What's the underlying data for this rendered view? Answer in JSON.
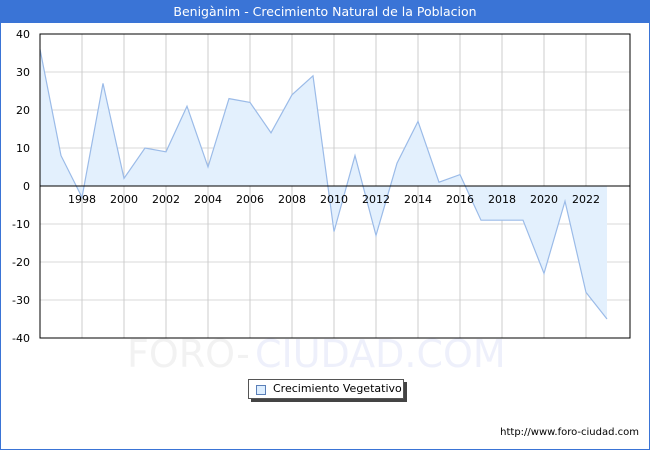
{
  "header": {
    "title": "Benigànim - Crecimiento Natural de la Poblacion"
  },
  "legend": {
    "label": "Crecimiento Vegetativo",
    "swatch_color": "#ddeeff"
  },
  "watermark": {
    "left": "FORO-",
    "right": "CIUDAD.COM"
  },
  "footer": {
    "url": "http://www.foro-ciudad.com"
  },
  "colors": {
    "title_bg": "#3a74d6",
    "line": "#9bbbe8",
    "fill": "#e3f0fd",
    "grid": "#d9d9d9"
  },
  "chart_data": {
    "type": "area",
    "title": "Benigànim - Crecimiento Natural de la Poblacion",
    "xlabel": "",
    "ylabel": "",
    "ylim": [
      -40,
      40
    ],
    "yticks": [
      40,
      30,
      20,
      10,
      0,
      -10,
      -20,
      -30,
      -40
    ],
    "xtick_labels": [
      "1998",
      "2000",
      "2002",
      "2004",
      "2006",
      "2008",
      "2010",
      "2012",
      "2014",
      "2016",
      "2018",
      "2020",
      "2022"
    ],
    "grid": true,
    "legend_position": "bottom",
    "x": [
      1996,
      1997,
      1998,
      1999,
      2000,
      2001,
      2002,
      2003,
      2004,
      2005,
      2006,
      2007,
      2008,
      2009,
      2010,
      2011,
      2012,
      2013,
      2014,
      2015,
      2016,
      2017,
      2018,
      2019,
      2020,
      2021,
      2022,
      2023
    ],
    "series": [
      {
        "name": "Crecimiento Vegetativo",
        "values": [
          36,
          8,
          -3,
          27,
          2,
          10,
          9,
          21,
          5,
          23,
          22,
          14,
          24,
          29,
          -12,
          8,
          -13,
          6,
          17,
          1,
          3,
          -9,
          -9,
          -9,
          -23,
          -4,
          -28,
          -35
        ]
      }
    ]
  }
}
